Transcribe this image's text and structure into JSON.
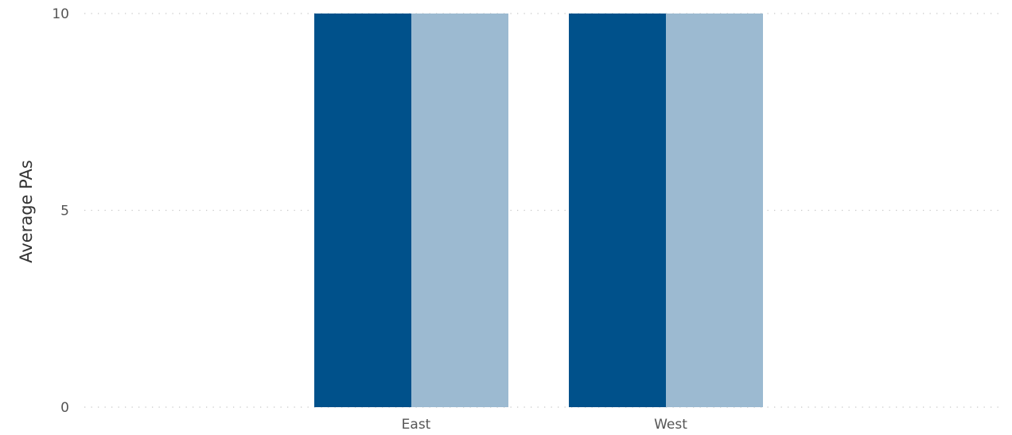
{
  "chart_data": {
    "type": "bar",
    "categories": [
      "East",
      "West"
    ],
    "series": [
      {
        "values": [
          10,
          10
        ],
        "color": "#00518b"
      },
      {
        "values": [
          10,
          10
        ],
        "color": "#9cbad1"
      }
    ],
    "title": "",
    "xlabel": "",
    "ylabel": "Average PAs",
    "ylim": [
      0,
      10
    ],
    "yticks": [
      0,
      5,
      10
    ],
    "grid": "horizontal-dotted",
    "legend": "none"
  }
}
